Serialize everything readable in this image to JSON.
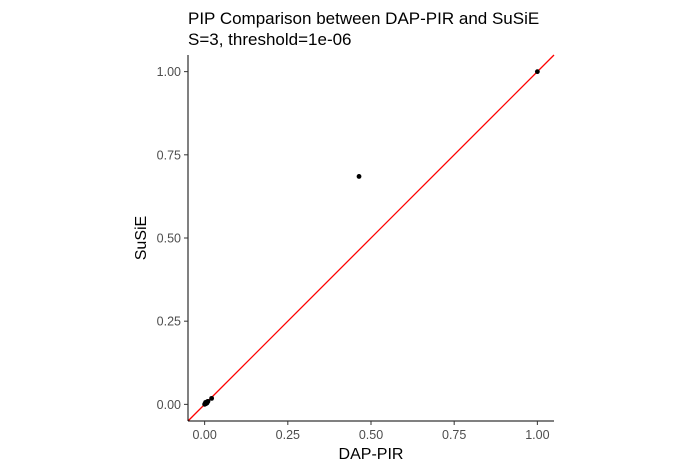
{
  "chart_data": {
    "type": "scatter",
    "title": "PIP Comparison between DAP-PIR and SuSiE",
    "subtitle": "S=3, threshold=1e-06",
    "xlabel": "DAP-PIR",
    "ylabel": "SuSiE",
    "xlim": [
      -0.05,
      1.05
    ],
    "ylim": [
      -0.05,
      1.05
    ],
    "x_ticks": [
      0.0,
      0.25,
      0.5,
      0.75,
      1.0
    ],
    "x_tick_labels": [
      "0.00",
      "0.25",
      "0.50",
      "0.75",
      "1.00"
    ],
    "y_ticks": [
      0.0,
      0.25,
      0.5,
      0.75,
      1.0
    ],
    "y_tick_labels": [
      "0.00",
      "0.25",
      "0.50",
      "0.75",
      "1.00"
    ],
    "grid": false,
    "reference_line": {
      "slope": 1,
      "intercept": 0,
      "color": "#ff0000"
    },
    "point_color": "#000000",
    "points": [
      {
        "x": 0.0,
        "y": 0.0
      },
      {
        "x": 0.001,
        "y": 0.001
      },
      {
        "x": 0.002,
        "y": 0.003
      },
      {
        "x": 0.004,
        "y": 0.002
      },
      {
        "x": 0.005,
        "y": 0.005
      },
      {
        "x": 0.003,
        "y": 0.006
      },
      {
        "x": 0.007,
        "y": 0.004
      },
      {
        "x": 0.008,
        "y": 0.008
      },
      {
        "x": 0.01,
        "y": 0.009
      },
      {
        "x": 0.021,
        "y": 0.018
      },
      {
        "x": 0.464,
        "y": 0.685
      },
      {
        "x": 1.0,
        "y": 1.0
      }
    ]
  }
}
